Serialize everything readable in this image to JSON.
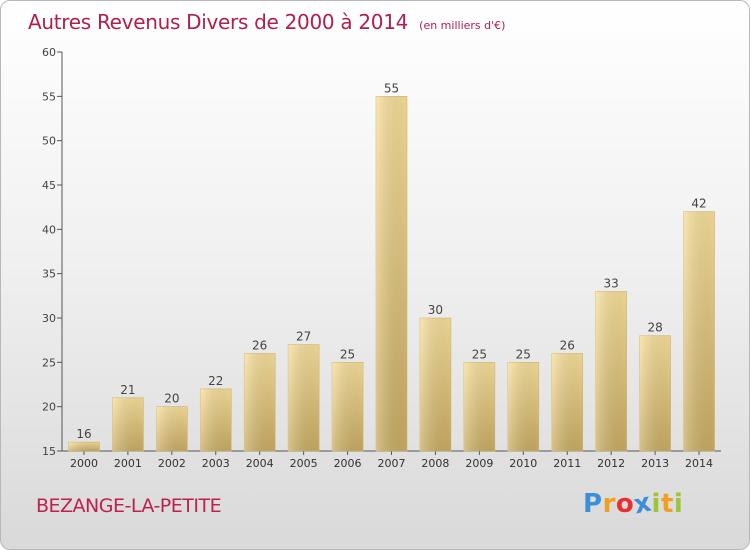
{
  "chart_data": {
    "type": "bar",
    "title": "Autres Revenus Divers de 2000 à 2014",
    "subtitle": "(en milliers d'€)",
    "categories": [
      "2000",
      "2001",
      "2002",
      "2003",
      "2004",
      "2005",
      "2006",
      "2007",
      "2008",
      "2009",
      "2010",
      "2011",
      "2012",
      "2013",
      "2014"
    ],
    "values": [
      16,
      21,
      20,
      22,
      26,
      27,
      25,
      55,
      30,
      25,
      25,
      26,
      33,
      28,
      42
    ],
    "ylim": [
      15,
      60
    ],
    "yticks": [
      15,
      20,
      25,
      30,
      35,
      40,
      45,
      50,
      55,
      60
    ],
    "grid": false,
    "bar_color": "#e6c97f"
  },
  "commune": "BEZANGE-LA-PETITE",
  "logo": {
    "letters": [
      "P",
      "r",
      "o",
      "x",
      "i",
      "t",
      "i"
    ],
    "colors": [
      "#3c8fd6",
      "#f0a020",
      "#e83030",
      "#3c8fd6",
      "#9cc63a",
      "#f0a020",
      "#9cc63a"
    ]
  }
}
